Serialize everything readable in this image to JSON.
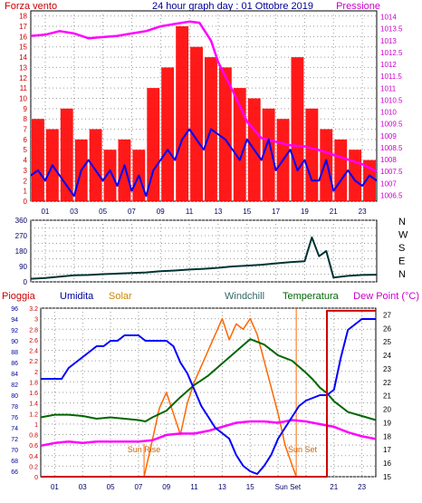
{
  "header": {
    "left": "Forza vento",
    "center": "24 hour graph day : 01 Ottobre 2019",
    "right": "Pressione"
  },
  "colors": {
    "wind": "#ff0000",
    "pressure": "#ff00ff",
    "speed_line": "#0000ff",
    "direction": "#003333",
    "humidity": "#0000ff",
    "solar": "#ff6600",
    "windchill": "#336666",
    "temperature": "#006600",
    "dewpoint": "#ff00ff",
    "rain": "#cc0000",
    "grid": "#9a9a9a",
    "axis_left": "#cc0000",
    "axis_right": "#cc00cc",
    "axis_blue": "#000099"
  },
  "time_ticks": [
    "01",
    "03",
    "05",
    "07",
    "09",
    "11",
    "13",
    "15",
    "17",
    "19",
    "21",
    "23"
  ],
  "bottom_ticks": [
    "01",
    "03",
    "05",
    "07",
    "09",
    "11",
    "13",
    "15",
    "Sun Set",
    "21",
    "23"
  ],
  "panel2": {
    "right_labels": [
      "N",
      "W",
      "S",
      "E",
      "N"
    ]
  },
  "panel3": {
    "legend": {
      "rain": "Pioggia",
      "humidity": "Umidita",
      "solar": "Solar",
      "windchill": "Windchill",
      "temperature": "Temperatura",
      "dewpoint": "Dew Point (°C)"
    },
    "annotations": {
      "sunrise": "Sun Rise",
      "sunset": "Sun Set"
    }
  },
  "chart_data": [
    {
      "type": "line",
      "panel": "wind-pressure",
      "x_range_hours": [
        0,
        24
      ],
      "left_axis": {
        "ticks": [
          0,
          1,
          2,
          3,
          4,
          5,
          6,
          7,
          8,
          9,
          10,
          11,
          12,
          13,
          14,
          15,
          16,
          17,
          18
        ],
        "ylim": [
          0,
          18.5
        ]
      },
      "right_axis": {
        "ticks": [
          1006.5,
          1007,
          1007.5,
          1008,
          1008.5,
          1009,
          1009.5,
          1010,
          1010.5,
          1011,
          1011.5,
          1012,
          1012.5,
          1013,
          1013.5,
          1014
        ],
        "ylim": [
          1006.25,
          1014.25
        ]
      },
      "series": [
        {
          "name": "Forza vento",
          "kind": "bars",
          "x": [
            0.5,
            1.5,
            2.5,
            3.5,
            4.5,
            5.5,
            6.5,
            7.5,
            8.5,
            9.5,
            10.5,
            11.5,
            12.5,
            13.5,
            14.5,
            15.5,
            16.5,
            17.5,
            18.5,
            19.5,
            20.5,
            21.5,
            22.5,
            23.5
          ],
          "values": [
            8,
            7,
            9,
            6,
            7,
            5,
            6,
            5,
            11,
            13,
            17,
            15,
            14,
            13,
            11,
            10,
            9,
            8,
            14,
            9,
            7,
            6,
            5,
            4
          ]
        },
        {
          "name": "Pressione",
          "kind": "line",
          "x": [
            0,
            1,
            2,
            3,
            4,
            5,
            6,
            7,
            8,
            9,
            10,
            11,
            11.7,
            12.5,
            13,
            14,
            15,
            16,
            17,
            18,
            19,
            20,
            21,
            22,
            23,
            24
          ],
          "values": [
            1013.2,
            1013.25,
            1013.4,
            1013.3,
            1013.1,
            1013.15,
            1013.2,
            1013.3,
            1013.4,
            1013.6,
            1013.7,
            1013.8,
            1013.75,
            1013.0,
            1012.1,
            1010.9,
            1009.6,
            1008.9,
            1008.75,
            1008.6,
            1008.55,
            1008.4,
            1008.2,
            1008.0,
            1007.8,
            1007.5
          ]
        },
        {
          "name": "Speed",
          "kind": "line",
          "x": [
            0,
            0.5,
            1,
            1.5,
            2,
            2.5,
            3,
            3.5,
            4,
            4.5,
            5,
            5.5,
            6,
            6.5,
            7,
            7.5,
            8,
            8.5,
            9,
            9.5,
            10,
            10.5,
            11,
            11.5,
            12,
            12.5,
            13,
            13.5,
            14,
            14.5,
            15,
            15.5,
            16,
            16.5,
            17,
            17.5,
            18,
            18.5,
            19,
            19.5,
            20,
            20.5,
            21,
            21.5,
            22,
            22.5,
            23,
            23.5,
            24
          ],
          "values": [
            2.5,
            3,
            2,
            3.5,
            2.5,
            1.5,
            0.5,
            3,
            4,
            3,
            2,
            3,
            1.5,
            3.5,
            1,
            2.5,
            0.5,
            3,
            4,
            5,
            4,
            6,
            7,
            6,
            5,
            7,
            6.5,
            6,
            5,
            4,
            6,
            5,
            4,
            6,
            3,
            4,
            5,
            3,
            4,
            2,
            2,
            4,
            1,
            2,
            3,
            2,
            1.5,
            2.5,
            2
          ]
        }
      ]
    },
    {
      "type": "line",
      "panel": "wind-direction",
      "y_ticks": [
        0,
        45,
        90,
        135,
        180,
        225,
        270,
        315,
        360
      ],
      "ylim": [
        0,
        360
      ],
      "x": [
        0,
        1,
        2,
        3,
        4,
        5,
        6,
        7,
        8,
        9,
        10,
        11,
        12,
        13,
        14,
        15,
        16,
        17,
        18,
        19,
        19.5,
        20,
        20.5,
        21,
        22,
        23,
        24
      ],
      "values": [
        18,
        22,
        30,
        38,
        40,
        45,
        48,
        52,
        55,
        62,
        66,
        72,
        76,
        82,
        90,
        95,
        100,
        108,
        115,
        120,
        260,
        150,
        180,
        25,
        35,
        40,
        42
      ]
    },
    {
      "type": "line",
      "panel": "rain-humidity-temp",
      "x_range_hours": [
        0,
        24
      ],
      "axes": {
        "rain_mm": {
          "ticks": [
            0,
            0.2,
            0.4,
            0.6,
            0.8,
            1,
            1.2,
            1.4,
            1.6,
            1.8,
            2,
            2.2,
            2.4,
            2.6,
            2.8,
            3,
            3.2
          ],
          "ylim": [
            0,
            3.2
          ]
        },
        "humidity_pct": {
          "ticks": [
            66,
            68,
            70,
            72,
            74,
            76,
            78,
            80,
            82,
            84,
            86,
            88,
            90,
            92,
            94,
            96
          ],
          "ylim": [
            65,
            96
          ]
        },
        "temperature_c": {
          "ticks": [
            15,
            16,
            17,
            18,
            19,
            20,
            21,
            22,
            23,
            24,
            25,
            26,
            27
          ],
          "ylim": [
            15,
            27.5
          ]
        }
      },
      "series": [
        {
          "name": "Umidita",
          "x": [
            0,
            1.5,
            2,
            2.5,
            3,
            3.5,
            4,
            4.5,
            5,
            5.5,
            6,
            6.5,
            7,
            7.5,
            8,
            8.5,
            9,
            9.5,
            10,
            10.5,
            11,
            11.5,
            12,
            12.5,
            13,
            13.5,
            14,
            14.5,
            15,
            15.5,
            16,
            16.5,
            17,
            17.5,
            18,
            18.5,
            19,
            19.5,
            20,
            20.5,
            21,
            21.5,
            22,
            22.5,
            23,
            24
          ],
          "values": [
            83,
            83,
            85,
            86,
            87,
            88,
            89,
            89,
            90,
            90,
            91,
            91,
            91,
            90,
            90,
            90,
            90,
            89,
            86,
            84,
            81,
            78,
            76,
            74,
            73,
            72,
            69,
            67,
            66,
            65.5,
            67,
            69,
            72,
            74,
            76,
            78,
            79,
            79.5,
            80,
            80,
            81,
            87,
            92,
            93,
            94,
            94
          ]
        },
        {
          "name": "Windchill",
          "x": [
            0,
            1,
            2,
            3,
            4,
            5,
            6,
            7,
            7.5,
            8,
            9,
            10,
            11,
            12,
            13,
            14,
            15,
            16,
            17,
            18,
            19,
            19.5,
            20,
            20.5,
            21,
            22,
            23,
            24
          ],
          "values": [
            19.4,
            19.6,
            19.6,
            19.5,
            19.3,
            19.4,
            19.3,
            19.2,
            19.1,
            19.4,
            19.9,
            20.9,
            21.8,
            22.5,
            23.4,
            24.3,
            25.2,
            24.8,
            24.0,
            23.6,
            22.7,
            22.2,
            21.6,
            21.2,
            20.6,
            19.8,
            19.5,
            19.2
          ]
        },
        {
          "name": "Dew Point",
          "x": [
            0,
            1,
            2,
            3,
            4,
            5,
            6,
            7,
            8,
            9,
            10,
            11,
            12,
            13,
            14,
            15,
            16,
            17,
            18,
            19,
            20,
            21,
            22,
            23,
            24
          ],
          "values": [
            17.3,
            17.5,
            17.6,
            17.5,
            17.6,
            17.6,
            17.6,
            17.6,
            17.7,
            18.1,
            18.2,
            18.2,
            18.4,
            18.7,
            19.0,
            19.1,
            19.1,
            19.0,
            19.2,
            19.1,
            18.9,
            18.7,
            18.3,
            18.0,
            17.8
          ]
        },
        {
          "name": "Solar",
          "x": [
            7.4,
            8,
            8.5,
            9,
            9.5,
            10,
            10.5,
            11,
            11.5,
            12,
            12.5,
            13,
            13.5,
            14,
            14.5,
            15,
            15.5,
            16,
            16.5,
            17,
            17.5,
            18.3
          ],
          "values": [
            0,
            0.7,
            1.3,
            1.6,
            1.2,
            0.8,
            1.4,
            1.8,
            2.1,
            2.4,
            2.7,
            3.0,
            2.6,
            2.9,
            2.8,
            3.0,
            2.7,
            2.2,
            1.7,
            1.2,
            0.6,
            0
          ]
        },
        {
          "name": "Pioggia",
          "x": [
            0,
            19.5,
            20.5,
            20.5,
            24
          ],
          "values": [
            0,
            0,
            0,
            3.15,
            3.15
          ]
        }
      ]
    }
  ]
}
